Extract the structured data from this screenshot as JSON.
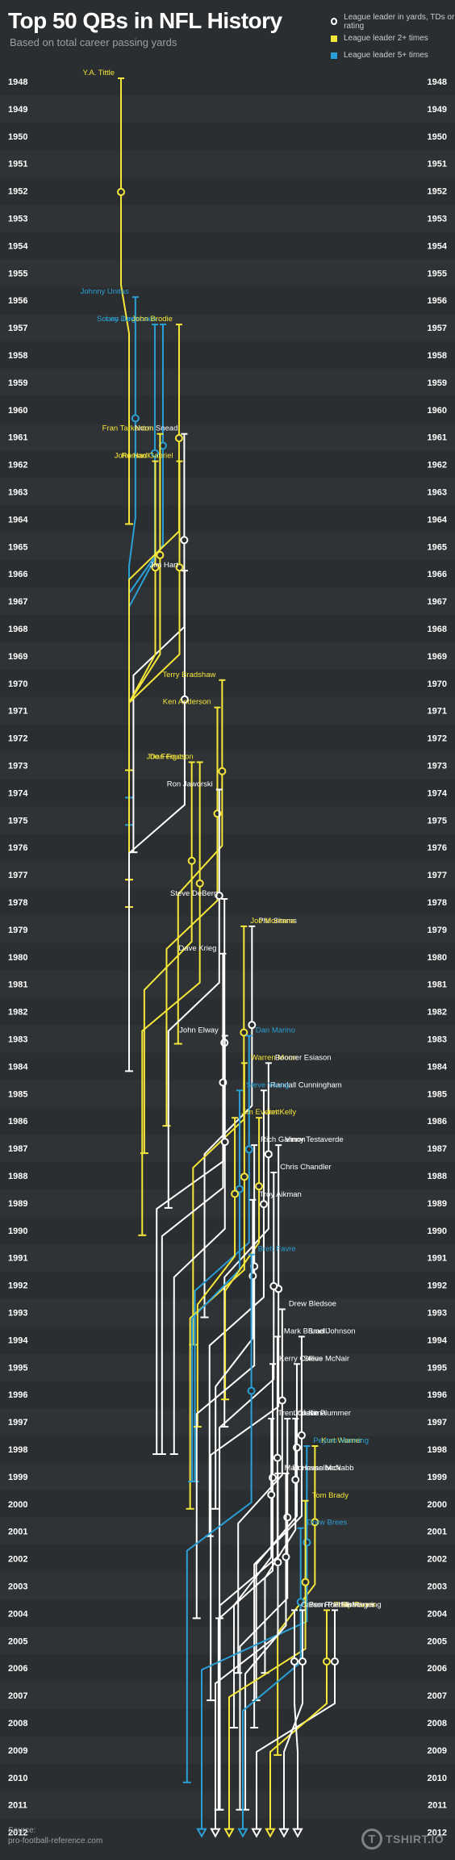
{
  "title": "Top 50 QBs in NFL History",
  "subtitle": "Based on total career passing yards",
  "legend": {
    "white": "League leader in yards, TDs or rating",
    "yellow": "League leader 2+ times",
    "blue": "League leader 5+ times"
  },
  "colors": {
    "background": "#2b2e30",
    "band": "#303335",
    "white": "#ffffff",
    "yellow": "#f5e63b",
    "blue": "#2a9fd6"
  },
  "source": {
    "label": "Source:",
    "value": "pro-football-reference.com"
  },
  "logo": {
    "mark": "T",
    "text": "TSHIRT.IO"
  },
  "chart_data": {
    "type": "line",
    "y_axis": {
      "years": [
        1948,
        1949,
        1950,
        1951,
        1952,
        1953,
        1954,
        1955,
        1956,
        1957,
        1958,
        1959,
        1960,
        1961,
        1962,
        1963,
        1964,
        1965,
        1966,
        1967,
        1968,
        1969,
        1970,
        1971,
        1972,
        1973,
        1974,
        1975,
        1976,
        1977,
        1978,
        1979,
        1980,
        1981,
        1982,
        1983,
        1984,
        1985,
        1986,
        1987,
        1988,
        1989,
        1990,
        1991,
        1992,
        1993,
        1994,
        1995,
        1996,
        1997,
        1998,
        1999,
        2000,
        2001,
        2002,
        2003,
        2004,
        2005,
        2006,
        2007,
        2008,
        2009,
        2010,
        2011,
        2012
      ],
      "direction": "down"
    },
    "series": [
      {
        "name": "Y.A. Tittle",
        "start": 1948,
        "end": 1964,
        "tier": "yellow",
        "active": false
      },
      {
        "name": "Johnny Unitas",
        "start": 1956,
        "end": 1973,
        "tier": "blue",
        "active": false
      },
      {
        "name": "Sonny Jurgensen",
        "start": 1957,
        "end": 1974,
        "tier": "blue",
        "active": false
      },
      {
        "name": "Len Dawson",
        "start": 1957,
        "end": 1975,
        "tier": "blue",
        "active": false
      },
      {
        "name": "John Brodie",
        "start": 1957,
        "end": 1973,
        "tier": "yellow",
        "active": false
      },
      {
        "name": "Norm Snead",
        "start": 1961,
        "end": 1976,
        "tier": "white",
        "active": false
      },
      {
        "name": "Fran Tarkenton",
        "start": 1961,
        "end": 1978,
        "tier": "yellow",
        "active": false
      },
      {
        "name": "John Hadl",
        "start": 1962,
        "end": 1977,
        "tier": "yellow",
        "active": false
      },
      {
        "name": "Roman Gabriel",
        "start": 1962,
        "end": 1977,
        "tier": "yellow",
        "active": false
      },
      {
        "name": "Jim Hart",
        "start": 1966,
        "end": 1984,
        "tier": "white",
        "active": false
      },
      {
        "name": "Terry Bradshaw",
        "start": 1970,
        "end": 1983,
        "tier": "yellow",
        "active": false
      },
      {
        "name": "Ken Anderson",
        "start": 1971,
        "end": 1986,
        "tier": "yellow",
        "active": false
      },
      {
        "name": "Joe Ferguson",
        "start": 1973,
        "end": 1990,
        "tier": "yellow",
        "active": false
      },
      {
        "name": "Dan Fouts",
        "start": 1973,
        "end": 1987,
        "tier": "yellow",
        "active": false
      },
      {
        "name": "Ron Jaworski",
        "start": 1974,
        "end": 1989,
        "tier": "white",
        "active": false
      },
      {
        "name": "Steve DeBerg",
        "start": 1978,
        "end": 1998,
        "tier": "white",
        "active": false
      },
      {
        "name": "Phil Simms",
        "start": 1979,
        "end": 1993,
        "tier": "white",
        "active": false
      },
      {
        "name": "Joe Montana",
        "start": 1979,
        "end": 1994,
        "tier": "yellow",
        "active": false
      },
      {
        "name": "Dave Krieg",
        "start": 1980,
        "end": 1998,
        "tier": "white",
        "active": false
      },
      {
        "name": "John Elway",
        "start": 1983,
        "end": 1998,
        "tier": "white",
        "active": false
      },
      {
        "name": "Dan Marino",
        "start": 1983,
        "end": 1999,
        "tier": "blue",
        "active": false
      },
      {
        "name": "Warren Moon",
        "start": 1984,
        "end": 2000,
        "tier": "yellow",
        "active": false
      },
      {
        "name": "Boomer Esiason",
        "start": 1984,
        "end": 1997,
        "tier": "white",
        "active": false
      },
      {
        "name": "Randall Cunningham",
        "start": 1985,
        "end": 2001,
        "tier": "white",
        "active": false
      },
      {
        "name": "Steve Young",
        "start": 1985,
        "end": 1999,
        "tier": "blue",
        "active": false
      },
      {
        "name": "Jim Everett",
        "start": 1986,
        "end": 1997,
        "tier": "yellow",
        "active": false
      },
      {
        "name": "Jim Kelly",
        "start": 1986,
        "end": 1996,
        "tier": "yellow",
        "active": false
      },
      {
        "name": "Rich Gannon",
        "start": 1987,
        "end": 2004,
        "tier": "white",
        "active": false
      },
      {
        "name": "Vinny Testaverde",
        "start": 1987,
        "end": 2007,
        "tier": "white",
        "active": false
      },
      {
        "name": "Chris Chandler",
        "start": 1988,
        "end": 2004,
        "tier": "white",
        "active": false
      },
      {
        "name": "Troy Aikman",
        "start": 1989,
        "end": 2000,
        "tier": "white",
        "active": false
      },
      {
        "name": "Brett Favre",
        "start": 1991,
        "end": 2010,
        "tier": "blue",
        "active": false
      },
      {
        "name": "Drew Bledsoe",
        "start": 1993,
        "end": 2006,
        "tier": "white",
        "active": false
      },
      {
        "name": "Mark Brunell",
        "start": 1994,
        "end": 2011,
        "tier": "white",
        "active": false
      },
      {
        "name": "Brad Johnson",
        "start": 1994,
        "end": 2008,
        "tier": "white",
        "active": false
      },
      {
        "name": "Steve McNair",
        "start": 1995,
        "end": 2007,
        "tier": "white",
        "active": false
      },
      {
        "name": "Kerry Collins",
        "start": 1995,
        "end": 2011,
        "tier": "white",
        "active": false
      },
      {
        "name": "Trent Green",
        "start": 1997,
        "end": 2008,
        "tier": "white",
        "active": false
      },
      {
        "name": "Jake Plummer",
        "start": 1997,
        "end": 2006,
        "tier": "white",
        "active": false
      },
      {
        "name": "Jon Kitna",
        "start": 1997,
        "end": 2011,
        "tier": "white",
        "active": false
      },
      {
        "name": "Kurt Warner",
        "start": 1998,
        "end": 2009,
        "tier": "yellow",
        "active": false
      },
      {
        "name": "Peyton Manning",
        "start": 1998,
        "end": 2012,
        "tier": "blue",
        "active": true
      },
      {
        "name": "Donovan McNabb",
        "start": 1999,
        "end": 2011,
        "tier": "white",
        "active": false
      },
      {
        "name": "Matt Hasselbeck",
        "start": 1999,
        "end": 2012,
        "tier": "white",
        "active": true
      },
      {
        "name": "Tom Brady",
        "start": 2000,
        "end": 2012,
        "tier": "yellow",
        "active": true
      },
      {
        "name": "Drew Brees",
        "start": 2001,
        "end": 2012,
        "tier": "blue",
        "active": true
      },
      {
        "name": "Eli Manning",
        "start": 2004,
        "end": 2012,
        "tier": "white",
        "active": true
      },
      {
        "name": "Philip Rivers",
        "start": 2004,
        "end": 2012,
        "tier": "yellow",
        "active": true
      },
      {
        "name": "Ben Roethlisberger",
        "start": 2004,
        "end": 2012,
        "tier": "white",
        "active": true
      },
      {
        "name": "Carson Palmer",
        "start": 2004,
        "end": 2012,
        "tier": "white",
        "active": true
      }
    ]
  }
}
